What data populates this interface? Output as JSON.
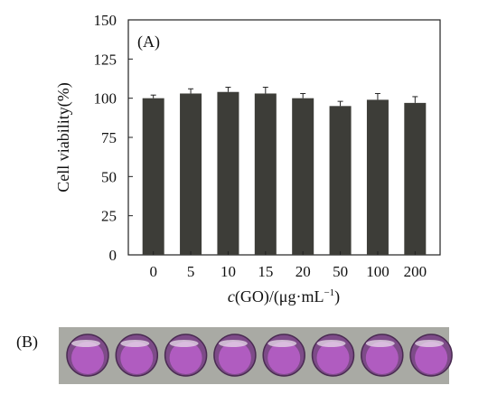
{
  "chart_data": {
    "type": "bar",
    "panel_label": "(A)",
    "categories": [
      "0",
      "5",
      "10",
      "15",
      "20",
      "50",
      "100",
      "200"
    ],
    "values": [
      100,
      103,
      104,
      103,
      100,
      95,
      99,
      97
    ],
    "errors": [
      2,
      3,
      3,
      4,
      3,
      3,
      4,
      4
    ],
    "ylabel": "Cell viability(%)",
    "xlabel": {
      "italic": "c",
      "main": "(GO)/(μg·mL",
      "sup": "−1",
      "close": ")"
    },
    "ylim": [
      0,
      150
    ],
    "yticks": [
      0,
      25,
      50,
      75,
      100,
      125,
      150
    ],
    "grid": false,
    "bar_color": "#3d3d38"
  },
  "wells_panel": {
    "label": "(B)",
    "background_color": "#a9aaa4",
    "well_count": 8,
    "well_color": "#b05cc0"
  }
}
